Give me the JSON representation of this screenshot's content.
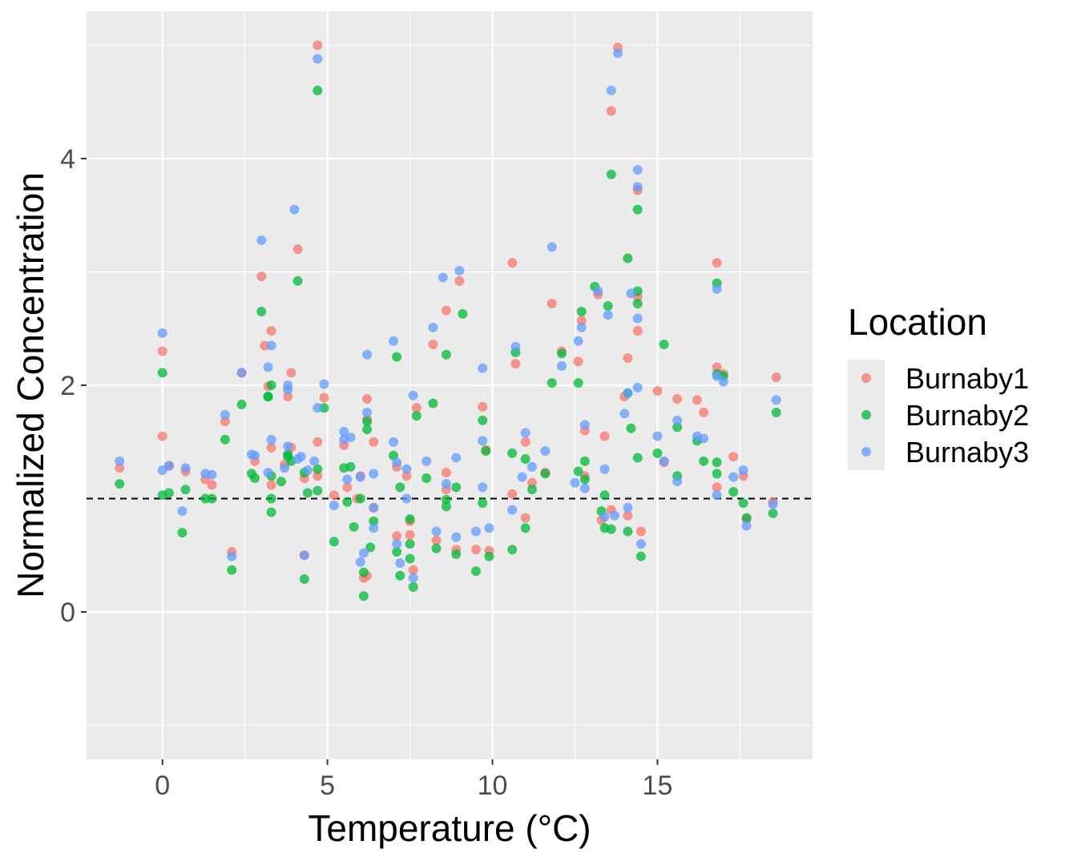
{
  "chart_data": {
    "type": "scatter",
    "xlabel": "Temperature (°C)",
    "ylabel": "Normalized Concentration",
    "xlim": [
      -2.3,
      19.7
    ],
    "ylim": [
      -1.3,
      5.3
    ],
    "x_ticks": [
      0,
      5,
      10,
      15
    ],
    "x_tick_labels": [
      "0",
      "5",
      "10",
      "15"
    ],
    "y_ticks": [
      0,
      2,
      4
    ],
    "y_tick_labels": [
      "0",
      "2",
      "4"
    ],
    "grid": true,
    "reference_line": {
      "y": 1,
      "style": "dashed"
    },
    "legend": {
      "title": "Location",
      "position": "right"
    },
    "series": [
      {
        "name": "Burnaby1",
        "color": "#F8766D",
        "points": [
          [
            -1.3,
            1.27
          ],
          [
            0,
            2.3
          ],
          [
            0,
            1.55
          ],
          [
            0.2,
            1.29
          ],
          [
            0.7,
            1.24
          ],
          [
            1.3,
            1.17
          ],
          [
            1.5,
            1.12
          ],
          [
            1.9,
            1.68
          ],
          [
            2.1,
            0.53
          ],
          [
            2.4,
            2.11
          ],
          [
            2.8,
            1.33
          ],
          [
            3.0,
            2.96
          ],
          [
            3.1,
            2.35
          ],
          [
            3.2,
            1.99
          ],
          [
            3.3,
            2.48
          ],
          [
            3.3,
            1.45
          ],
          [
            3.3,
            1.12
          ],
          [
            3.7,
            1.3
          ],
          [
            3.8,
            1.9
          ],
          [
            3.9,
            2.11
          ],
          [
            3.9,
            1.45
          ],
          [
            4.1,
            3.2
          ],
          [
            4.3,
            1.18
          ],
          [
            4.3,
            0.5
          ],
          [
            4.7,
            5.0
          ],
          [
            4.7,
            1.2
          ],
          [
            4.7,
            1.5
          ],
          [
            4.9,
            1.89
          ],
          [
            5.2,
            1.03
          ],
          [
            5.5,
            1.47
          ],
          [
            5.6,
            1.1
          ],
          [
            5.9,
            1.0
          ],
          [
            6.0,
            1.2
          ],
          [
            6.1,
            0.3
          ],
          [
            6.2,
            1.88
          ],
          [
            6.2,
            1.7
          ],
          [
            6.2,
            0.32
          ],
          [
            6.4,
            1.5
          ],
          [
            6.4,
            0.92
          ],
          [
            7.1,
            0.67
          ],
          [
            7.1,
            1.28
          ],
          [
            7.4,
            1.2
          ],
          [
            7.5,
            0.8
          ],
          [
            7.5,
            0.68
          ],
          [
            7.6,
            0.37
          ],
          [
            7.7,
            1.8
          ],
          [
            8.2,
            2.36
          ],
          [
            8.3,
            0.63
          ],
          [
            8.6,
            2.66
          ],
          [
            8.6,
            1.23
          ],
          [
            8.6,
            1.08
          ],
          [
            8.9,
            0.55
          ],
          [
            9.0,
            2.92
          ],
          [
            9.5,
            0.55
          ],
          [
            9.7,
            1.81
          ],
          [
            9.8,
            1.43
          ],
          [
            9.9,
            0.54
          ],
          [
            10.6,
            3.08
          ],
          [
            10.6,
            1.04
          ],
          [
            10.7,
            2.19
          ],
          [
            11.0,
            1.5
          ],
          [
            11.0,
            0.83
          ],
          [
            11.2,
            1.14
          ],
          [
            11.6,
            1.23
          ],
          [
            11.8,
            2.72
          ],
          [
            12.1,
            2.3
          ],
          [
            12.6,
            2.21
          ],
          [
            12.7,
            2.57
          ],
          [
            12.8,
            1.6
          ],
          [
            12.8,
            1.2
          ],
          [
            13.2,
            2.8
          ],
          [
            13.3,
            0.81
          ],
          [
            13.4,
            1.55
          ],
          [
            13.6,
            4.42
          ],
          [
            13.6,
            0.9
          ],
          [
            13.8,
            4.98
          ],
          [
            14.0,
            1.9
          ],
          [
            14.1,
            2.24
          ],
          [
            14.1,
            0.85
          ],
          [
            14.4,
            3.72
          ],
          [
            14.4,
            2.78
          ],
          [
            14.4,
            2.48
          ],
          [
            14.5,
            0.71
          ],
          [
            15.0,
            1.95
          ],
          [
            15.2,
            1.32
          ],
          [
            15.6,
            1.88
          ],
          [
            16.2,
            1.87
          ],
          [
            16.4,
            1.76
          ],
          [
            16.8,
            3.08
          ],
          [
            16.8,
            2.16
          ],
          [
            16.8,
            1.1
          ],
          [
            17.0,
            2.1
          ],
          [
            17.3,
            1.37
          ],
          [
            17.6,
            1.2
          ],
          [
            17.7,
            0.82
          ],
          [
            18.5,
            0.97
          ],
          [
            18.6,
            2.07
          ]
        ]
      },
      {
        "name": "Burnaby2",
        "color": "#00BA38",
        "points": [
          [
            -1.3,
            1.13
          ],
          [
            0,
            2.11
          ],
          [
            0,
            1.03
          ],
          [
            0.2,
            1.05
          ],
          [
            0.6,
            0.7
          ],
          [
            0.7,
            1.08
          ],
          [
            1.3,
            1.0
          ],
          [
            1.5,
            1.0
          ],
          [
            1.9,
            1.52
          ],
          [
            2.1,
            0.37
          ],
          [
            2.4,
            1.83
          ],
          [
            2.7,
            1.22
          ],
          [
            2.8,
            1.18
          ],
          [
            3.0,
            2.65
          ],
          [
            3.2,
            1.9
          ],
          [
            3.2,
            1.9
          ],
          [
            3.3,
            0.88
          ],
          [
            3.3,
            1.0
          ],
          [
            3.3,
            1.2
          ],
          [
            3.3,
            2.0
          ],
          [
            3.6,
            1.15
          ],
          [
            3.8,
            1.39
          ],
          [
            3.8,
            1.37
          ],
          [
            3.9,
            1.33
          ],
          [
            4.1,
            2.92
          ],
          [
            4.3,
            1.23
          ],
          [
            4.3,
            0.29
          ],
          [
            4.4,
            1.05
          ],
          [
            4.7,
            4.6
          ],
          [
            4.7,
            1.07
          ],
          [
            4.7,
            1.26
          ],
          [
            4.9,
            1.8
          ],
          [
            5.2,
            0.62
          ],
          [
            5.5,
            1.27
          ],
          [
            5.6,
            0.97
          ],
          [
            5.7,
            1.28
          ],
          [
            5.8,
            0.75
          ],
          [
            6.0,
            1.0
          ],
          [
            6.1,
            0.35
          ],
          [
            6.1,
            0.14
          ],
          [
            6.2,
            1.61
          ],
          [
            6.2,
            1.68
          ],
          [
            6.3,
            0.57
          ],
          [
            6.4,
            0.8
          ],
          [
            7.0,
            1.38
          ],
          [
            7.1,
            2.25
          ],
          [
            7.1,
            0.53
          ],
          [
            7.2,
            1.1
          ],
          [
            7.2,
            0.32
          ],
          [
            7.5,
            0.82
          ],
          [
            7.5,
            0.47
          ],
          [
            7.5,
            0.6
          ],
          [
            7.6,
            0.22
          ],
          [
            7.7,
            1.73
          ],
          [
            8.0,
            1.18
          ],
          [
            8.2,
            1.84
          ],
          [
            8.3,
            0.56
          ],
          [
            8.6,
            0.93
          ],
          [
            8.6,
            0.99
          ],
          [
            8.6,
            2.27
          ],
          [
            8.9,
            1.1
          ],
          [
            8.9,
            0.51
          ],
          [
            9.1,
            2.63
          ],
          [
            9.5,
            0.36
          ],
          [
            9.7,
            1.69
          ],
          [
            9.7,
            0.96
          ],
          [
            9.8,
            1.42
          ],
          [
            9.9,
            0.49
          ],
          [
            10.6,
            1.4
          ],
          [
            10.6,
            0.55
          ],
          [
            10.7,
            2.29
          ],
          [
            11.0,
            1.35
          ],
          [
            11.0,
            0.74
          ],
          [
            11.2,
            1.08
          ],
          [
            11.6,
            1.22
          ],
          [
            11.8,
            2.02
          ],
          [
            12.1,
            2.28
          ],
          [
            12.6,
            2.02
          ],
          [
            12.6,
            1.24
          ],
          [
            12.7,
            2.65
          ],
          [
            12.8,
            1.33
          ],
          [
            12.8,
            1.17
          ],
          [
            13.1,
            2.87
          ],
          [
            13.3,
            0.89
          ],
          [
            13.4,
            0.74
          ],
          [
            13.4,
            1.03
          ],
          [
            13.5,
            2.7
          ],
          [
            13.6,
            3.86
          ],
          [
            13.6,
            0.73
          ],
          [
            14.1,
            1.93
          ],
          [
            14.1,
            3.12
          ],
          [
            14.1,
            0.71
          ],
          [
            14.2,
            1.62
          ],
          [
            14.4,
            3.55
          ],
          [
            14.4,
            2.83
          ],
          [
            14.4,
            2.72
          ],
          [
            14.4,
            1.36
          ],
          [
            14.5,
            0.49
          ],
          [
            15.0,
            1.4
          ],
          [
            15.2,
            2.36
          ],
          [
            15.6,
            1.63
          ],
          [
            15.6,
            1.2
          ],
          [
            16.2,
            1.51
          ],
          [
            16.4,
            1.33
          ],
          [
            16.8,
            2.9
          ],
          [
            16.8,
            2.1
          ],
          [
            16.8,
            1.32
          ],
          [
            16.8,
            1.22
          ],
          [
            17.0,
            2.08
          ],
          [
            17.3,
            1.06
          ],
          [
            17.6,
            0.96
          ],
          [
            17.7,
            0.83
          ],
          [
            18.5,
            0.87
          ],
          [
            18.6,
            1.76
          ]
        ]
      },
      {
        "name": "Burnaby3",
        "color": "#619CFF",
        "points": [
          [
            -1.3,
            1.33
          ],
          [
            0,
            2.46
          ],
          [
            0,
            1.25
          ],
          [
            0.2,
            1.29
          ],
          [
            0.6,
            0.89
          ],
          [
            0.7,
            1.27
          ],
          [
            1.3,
            1.22
          ],
          [
            1.5,
            1.21
          ],
          [
            1.9,
            1.74
          ],
          [
            2.1,
            0.49
          ],
          [
            2.4,
            2.11
          ],
          [
            2.7,
            1.39
          ],
          [
            2.8,
            1.38
          ],
          [
            3.0,
            3.28
          ],
          [
            3.2,
            2.16
          ],
          [
            3.2,
            1.23
          ],
          [
            3.3,
            2.35
          ],
          [
            3.3,
            1.52
          ],
          [
            3.7,
            1.27
          ],
          [
            3.8,
            2.0
          ],
          [
            3.8,
            1.96
          ],
          [
            3.8,
            1.46
          ],
          [
            4.0,
            3.55
          ],
          [
            4.1,
            1.35
          ],
          [
            4.2,
            1.37
          ],
          [
            4.3,
            0.5
          ],
          [
            4.4,
            1.25
          ],
          [
            4.6,
            1.33
          ],
          [
            4.7,
            4.88
          ],
          [
            4.7,
            1.8
          ],
          [
            4.9,
            2.01
          ],
          [
            5.2,
            0.94
          ],
          [
            5.5,
            1.59
          ],
          [
            5.5,
            1.52
          ],
          [
            5.6,
            1.17
          ],
          [
            5.7,
            1.54
          ],
          [
            6.0,
            1.19
          ],
          [
            6.0,
            0.44
          ],
          [
            6.1,
            0.52
          ],
          [
            6.2,
            2.27
          ],
          [
            6.2,
            1.76
          ],
          [
            6.4,
            1.22
          ],
          [
            6.4,
            0.92
          ],
          [
            6.4,
            0.74
          ],
          [
            7.0,
            1.5
          ],
          [
            7.0,
            2.39
          ],
          [
            7.1,
            1.32
          ],
          [
            7.1,
            0.6
          ],
          [
            7.2,
            0.43
          ],
          [
            7.4,
            1.26
          ],
          [
            7.4,
            1.0
          ],
          [
            7.6,
            1.91
          ],
          [
            7.6,
            0.3
          ],
          [
            8.0,
            1.33
          ],
          [
            8.2,
            2.51
          ],
          [
            8.3,
            0.71
          ],
          [
            8.5,
            2.95
          ],
          [
            8.6,
            1.13
          ],
          [
            8.9,
            1.36
          ],
          [
            8.9,
            0.66
          ],
          [
            9.0,
            3.01
          ],
          [
            9.5,
            0.71
          ],
          [
            9.7,
            1.51
          ],
          [
            9.7,
            2.15
          ],
          [
            9.7,
            1.1
          ],
          [
            9.9,
            0.74
          ],
          [
            10.6,
            0.9
          ],
          [
            10.7,
            2.34
          ],
          [
            10.9,
            1.19
          ],
          [
            11.0,
            1.58
          ],
          [
            11.2,
            1.28
          ],
          [
            11.6,
            1.42
          ],
          [
            11.8,
            3.22
          ],
          [
            12.1,
            2.17
          ],
          [
            12.5,
            1.14
          ],
          [
            12.6,
            2.39
          ],
          [
            12.7,
            2.51
          ],
          [
            12.8,
            1.09
          ],
          [
            12.8,
            1.65
          ],
          [
            13.2,
            2.83
          ],
          [
            13.4,
            1.26
          ],
          [
            13.4,
            0.84
          ],
          [
            13.5,
            2.62
          ],
          [
            13.6,
            4.6
          ],
          [
            13.7,
            0.85
          ],
          [
            13.8,
            4.93
          ],
          [
            14.0,
            1.75
          ],
          [
            14.1,
            1.93
          ],
          [
            14.1,
            0.92
          ],
          [
            14.2,
            2.81
          ],
          [
            14.4,
            1.98
          ],
          [
            14.4,
            3.9
          ],
          [
            14.4,
            3.75
          ],
          [
            14.4,
            2.59
          ],
          [
            14.5,
            0.6
          ],
          [
            15.0,
            1.55
          ],
          [
            15.2,
            1.33
          ],
          [
            15.6,
            1.69
          ],
          [
            15.6,
            1.15
          ],
          [
            16.2,
            1.55
          ],
          [
            16.4,
            1.53
          ],
          [
            16.8,
            2.85
          ],
          [
            16.8,
            2.08
          ],
          [
            16.8,
            1.03
          ],
          [
            17.0,
            2.03
          ],
          [
            17.3,
            1.19
          ],
          [
            17.6,
            1.25
          ],
          [
            17.7,
            0.76
          ],
          [
            18.5,
            0.95
          ],
          [
            18.6,
            1.87
          ]
        ]
      }
    ]
  }
}
